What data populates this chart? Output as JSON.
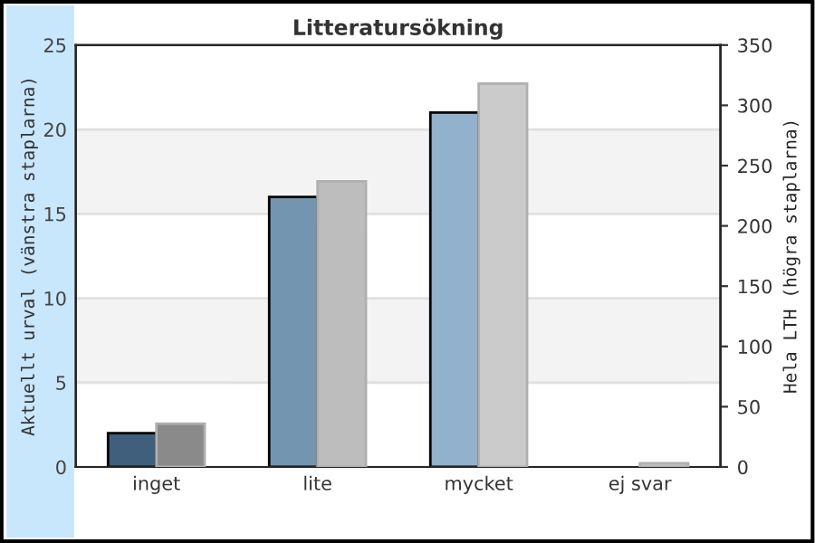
{
  "chart_data": {
    "type": "bar",
    "title": "Litteratursökning",
    "ylabel": "Aktuellt urval (vänstra staplarna)",
    "y2label": "Hela LTH (högra staplarna)",
    "categories": [
      "inget",
      "lite",
      "mycket",
      "ej svar"
    ],
    "series": [
      {
        "axis": "y",
        "colors": [
          "#3f5f7c",
          "#7395b0",
          "#91b1cc",
          "#91b1cc"
        ],
        "values": [
          2,
          16,
          21,
          null
        ]
      },
      {
        "axis": "y2",
        "colors": [
          "#8a8a8a",
          "#bdbdbd",
          "#cbcbcb",
          "#cbcbcb"
        ],
        "values": [
          36,
          237,
          318,
          3
        ]
      }
    ],
    "ylim": [
      0,
      25
    ],
    "yticks": [
      0,
      5,
      10,
      15,
      20,
      25
    ],
    "y2lim": [
      0,
      350
    ],
    "y2ticks": [
      0,
      50,
      100,
      150,
      200,
      250,
      300,
      350
    ],
    "bands": [
      {
        "axis": "y",
        "from": 5,
        "to": 10,
        "color": "#f3f3f3"
      },
      {
        "axis": "y",
        "from": 15,
        "to": 20,
        "color": "#f3f3f3"
      }
    ],
    "grid": "y",
    "legend": false
  }
}
